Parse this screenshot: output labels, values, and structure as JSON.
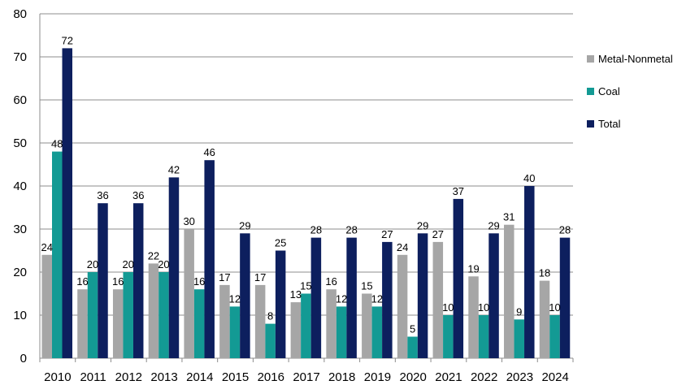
{
  "chart_data": {
    "type": "bar",
    "categories": [
      "2010",
      "2011",
      "2012",
      "2013",
      "2014",
      "2015",
      "2016",
      "2017",
      "2018",
      "2019",
      "2020",
      "2021",
      "2022",
      "2023",
      "2024"
    ],
    "series": [
      {
        "name": "Metal-Nonmetal",
        "color": "#a6a6a6",
        "values": [
          24,
          16,
          16,
          22,
          30,
          17,
          17,
          13,
          16,
          15,
          24,
          27,
          19,
          31,
          18
        ]
      },
      {
        "name": "Coal",
        "color": "#139a94",
        "values": [
          48,
          20,
          20,
          20,
          16,
          12,
          8,
          15,
          12,
          12,
          5,
          10,
          10,
          9,
          10
        ]
      },
      {
        "name": "Total",
        "color": "#0d1f5e",
        "values": [
          72,
          36,
          36,
          42,
          46,
          29,
          25,
          28,
          28,
          27,
          29,
          37,
          29,
          40,
          28
        ]
      }
    ],
    "ylim": [
      0,
      80
    ],
    "yticks": [
      "0",
      "10",
      "20",
      "30",
      "40",
      "50",
      "60",
      "70",
      "80"
    ],
    "grid": true,
    "legend_position": "right",
    "data_labels": true
  }
}
